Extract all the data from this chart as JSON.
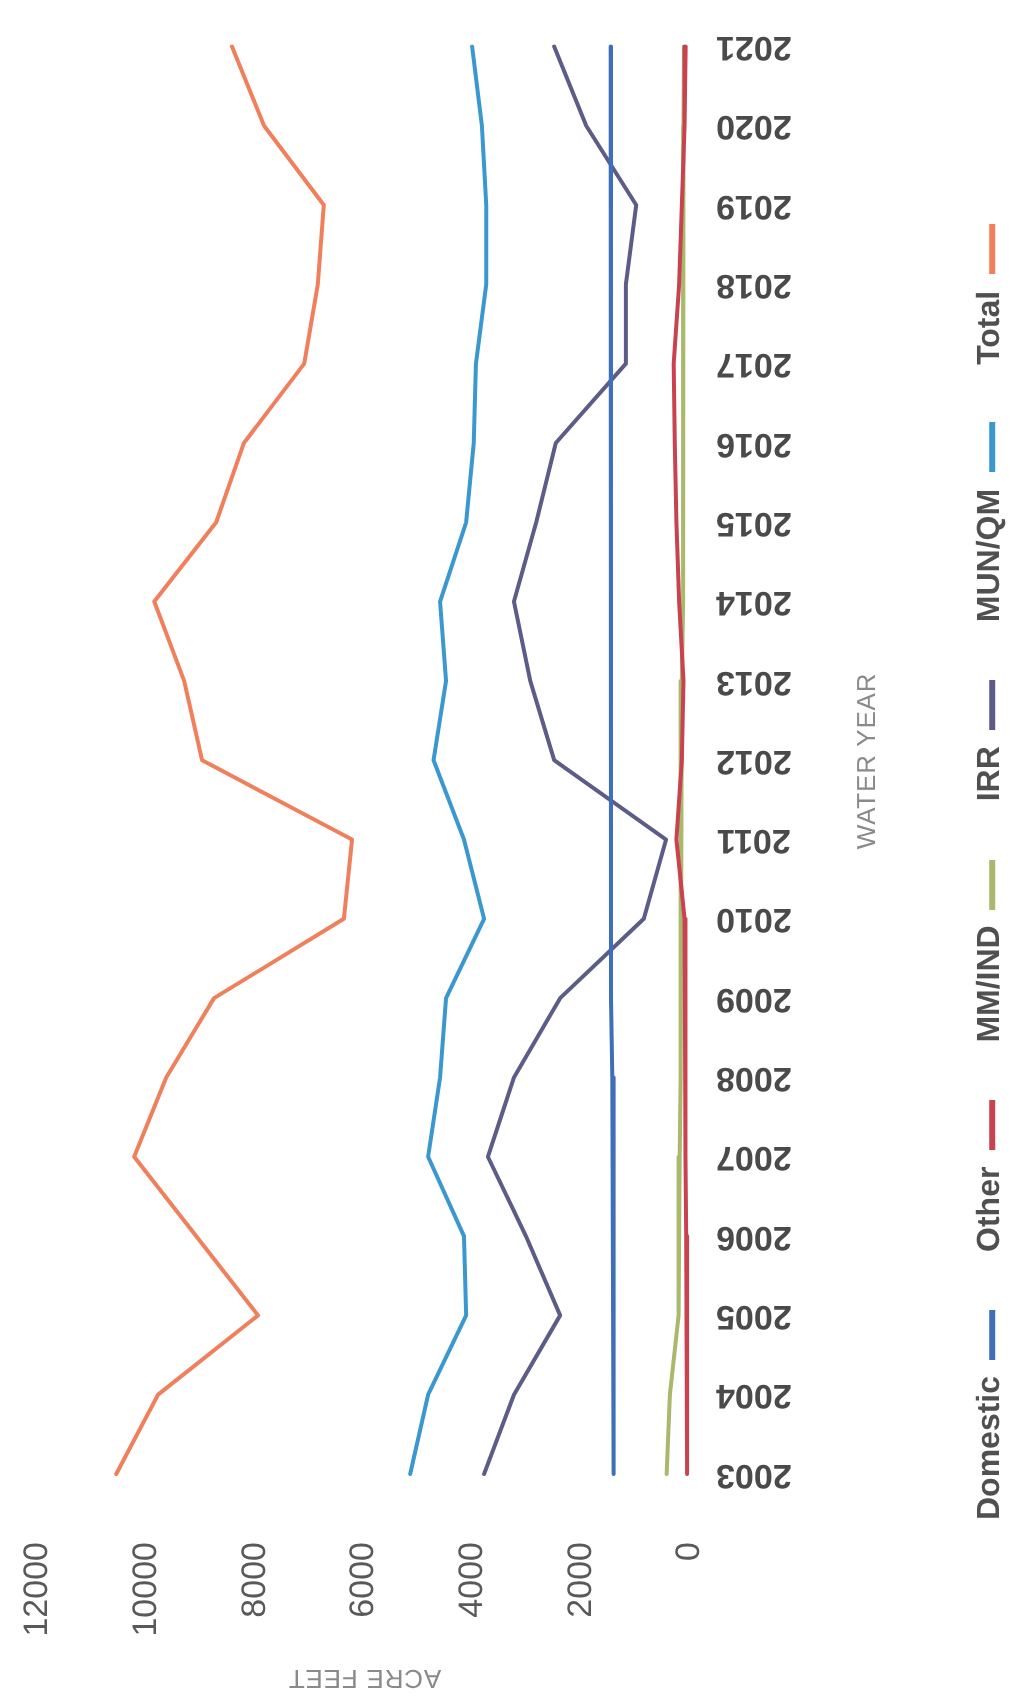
{
  "chart_data": {
    "type": "line",
    "orientation": "horizontal",
    "xlabel": "ACRE FEET",
    "ylabel": "WATER YEAR",
    "categories": [
      "2021",
      "2020",
      "2019",
      "2018",
      "2017",
      "2016",
      "2015",
      "2014",
      "2013",
      "2012",
      "2011",
      "2010",
      "2009",
      "2008",
      "2007",
      "2006",
      "2005",
      "2004",
      "2003"
    ],
    "xlim": [
      12000,
      0
    ],
    "xticks": [
      0,
      2000,
      4000,
      6000,
      8000,
      10000,
      12000
    ],
    "legend": "right",
    "series": [
      {
        "name": "Domestic",
        "color": "#3f6fb8",
        "values": [
          1460,
          1460,
          1460,
          1460,
          1460,
          1460,
          1460,
          1460,
          1450,
          1450,
          1450,
          1440,
          1440,
          1430,
          1420,
          1410,
          1400,
          1400,
          1400
        ]
      },
      {
        "name": "Other",
        "color": "#c9424f",
        "values": [
          80,
          100,
          150,
          200,
          300,
          280,
          250,
          200,
          120,
          150,
          250,
          100,
          90,
          80,
          80,
          70,
          60,
          50,
          50
        ]
      },
      {
        "name": "MM/IND",
        "color": "#a9b86a",
        "values": [
          110,
          120,
          120,
          120,
          120,
          130,
          130,
          140,
          150,
          160,
          170,
          170,
          180,
          180,
          190,
          200,
          220,
          370,
          430
        ]
      },
      {
        "name": "IRR",
        "color": "#5c5c88",
        "values": [
          2500,
          1910,
          990,
          1180,
          1180,
          2470,
          2830,
          3240,
          2940,
          2500,
          440,
          850,
          2390,
          3240,
          3720,
          3020,
          2390,
          3240,
          3790
        ]
      },
      {
        "name": "MUN/QM",
        "color": "#3b98cf",
        "values": [
          4010,
          3830,
          3750,
          3750,
          3940,
          3980,
          4120,
          4600,
          4490,
          4720,
          4160,
          3790,
          4490,
          4600,
          4820,
          4160,
          4120,
          4820,
          5150
        ]
      },
      {
        "name": "Total",
        "color": "#f0805c",
        "values": [
          8430,
          7840,
          6740,
          6850,
          7100,
          8210,
          8720,
          9860,
          9310,
          8980,
          6220,
          6370,
          8760,
          9640,
          10230,
          9090,
          7950,
          9790,
          10560
        ]
      }
    ]
  }
}
